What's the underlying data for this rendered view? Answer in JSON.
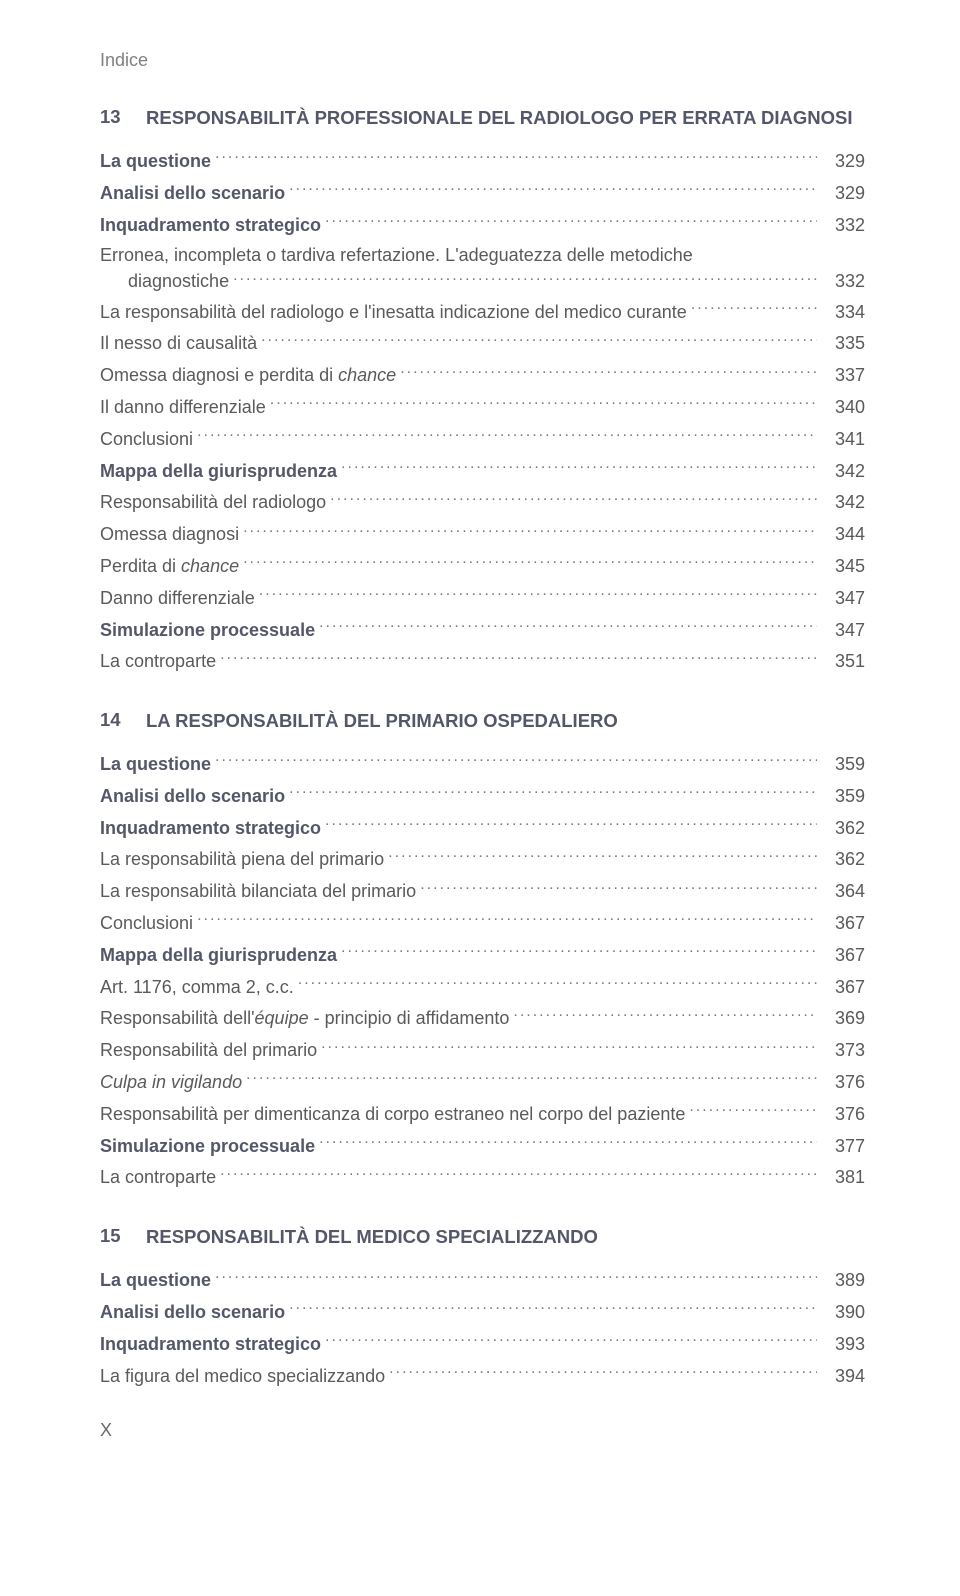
{
  "header": "Indice",
  "page_number": "X",
  "chapters": [
    {
      "num": "13",
      "title": "RESPONSABILITÀ PROFESSIONALE DEL RADIOLOGO PER ERRATA DIAGNOSI",
      "entries": [
        {
          "label": "La questione",
          "page": "329",
          "bold": true
        },
        {
          "label": "Analisi dello scenario",
          "page": "329",
          "bold": true
        },
        {
          "label": "Inquadramento strategico",
          "page": "332",
          "bold": true
        },
        {
          "label": "Erronea, incompleta o tardiva refertazione. L'adeguatezza delle metodiche diagnostiche",
          "page": "332",
          "multiline": true,
          "split_at": "Erronea, incompleta o tardiva refertazione. L'adeguatezza delle metodiche",
          "last_line": "diagnostiche"
        },
        {
          "label": "La responsabilità del radiologo e l'inesatta indicazione del medico curante",
          "page": "334"
        },
        {
          "label": "Il nesso di causalità",
          "page": "335"
        },
        {
          "label_html": "Omessa diagnosi e perdita di <span class=\"italic\">chance</span>",
          "page": "337"
        },
        {
          "label": "Il danno differenziale",
          "page": "340"
        },
        {
          "label": "Conclusioni",
          "page": "341"
        },
        {
          "label": "Mappa della giurisprudenza",
          "page": "342",
          "bold": true
        },
        {
          "label": "Responsabilità del radiologo",
          "page": "342"
        },
        {
          "label": "Omessa diagnosi",
          "page": "344"
        },
        {
          "label_html": "Perdita di <span class=\"italic\">chance</span>",
          "page": "345"
        },
        {
          "label": "Danno differenziale",
          "page": "347"
        },
        {
          "label": "Simulazione processuale",
          "page": "347",
          "bold": true
        },
        {
          "label": "La controparte",
          "page": "351"
        }
      ]
    },
    {
      "num": "14",
      "title": "LA RESPONSABILITÀ DEL PRIMARIO OSPEDALIERO",
      "entries": [
        {
          "label": "La questione",
          "page": "359",
          "bold": true
        },
        {
          "label": "Analisi dello scenario",
          "page": "359",
          "bold": true
        },
        {
          "label": "Inquadramento strategico",
          "page": "362",
          "bold": true
        },
        {
          "label": "La responsabilità piena del primario",
          "page": "362"
        },
        {
          "label": "La responsabilità bilanciata del primario",
          "page": "364"
        },
        {
          "label": "Conclusioni",
          "page": "367"
        },
        {
          "label": "Mappa della giurisprudenza",
          "page": "367",
          "bold": true
        },
        {
          "label": "Art. 1176, comma 2, c.c.",
          "page": "367"
        },
        {
          "label_html": "Responsabilità dell'<span class=\"italic\">équipe</span> - principio di affidamento",
          "page": "369"
        },
        {
          "label": "Responsabilità del primario",
          "page": "373"
        },
        {
          "label_html": "<span class=\"italic\">Culpa in vigilando</span>",
          "page": "376"
        },
        {
          "label": "Responsabilità per dimenticanza di corpo estraneo nel corpo del paziente",
          "page": "376"
        },
        {
          "label": "Simulazione processuale",
          "page": "377",
          "bold": true
        },
        {
          "label": "La controparte",
          "page": "381"
        }
      ]
    },
    {
      "num": "15",
      "title": "RESPONSABILITÀ DEL MEDICO SPECIALIZZANDO",
      "entries": [
        {
          "label": "La questione",
          "page": "389",
          "bold": true
        },
        {
          "label": "Analisi dello scenario",
          "page": "390",
          "bold": true
        },
        {
          "label": "Inquadramento strategico",
          "page": "393",
          "bold": true
        },
        {
          "label": "La figura del medico specializzando",
          "page": "394"
        }
      ]
    }
  ]
}
